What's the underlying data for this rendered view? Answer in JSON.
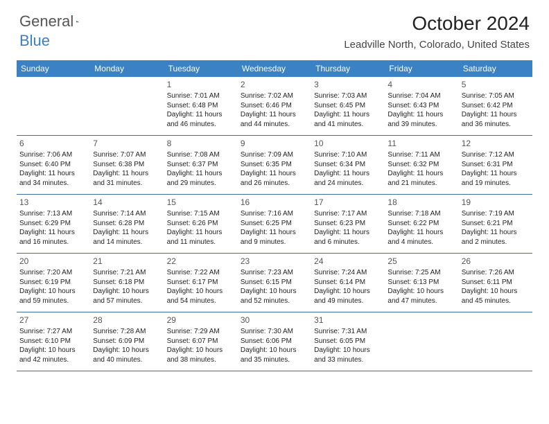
{
  "logo": {
    "text1": "General",
    "text2": "Blue",
    "color": "#3b7fc4"
  },
  "title": "October 2024",
  "location": "Leadville North, Colorado, United States",
  "colors": {
    "header_bg": "#3b82c4",
    "header_text": "#ffffff",
    "rule": "#3b6ea0",
    "text": "#222222",
    "daynum": "#555555"
  },
  "day_headers": [
    "Sunday",
    "Monday",
    "Tuesday",
    "Wednesday",
    "Thursday",
    "Friday",
    "Saturday"
  ],
  "weeks": [
    [
      {
        "blank": true
      },
      {
        "blank": true
      },
      {
        "n": "1",
        "sr": "7:01 AM",
        "ss": "6:48 PM",
        "dl": "11 hours and 46 minutes."
      },
      {
        "n": "2",
        "sr": "7:02 AM",
        "ss": "6:46 PM",
        "dl": "11 hours and 44 minutes."
      },
      {
        "n": "3",
        "sr": "7:03 AM",
        "ss": "6:45 PM",
        "dl": "11 hours and 41 minutes."
      },
      {
        "n": "4",
        "sr": "7:04 AM",
        "ss": "6:43 PM",
        "dl": "11 hours and 39 minutes."
      },
      {
        "n": "5",
        "sr": "7:05 AM",
        "ss": "6:42 PM",
        "dl": "11 hours and 36 minutes."
      }
    ],
    [
      {
        "n": "6",
        "sr": "7:06 AM",
        "ss": "6:40 PM",
        "dl": "11 hours and 34 minutes."
      },
      {
        "n": "7",
        "sr": "7:07 AM",
        "ss": "6:38 PM",
        "dl": "11 hours and 31 minutes."
      },
      {
        "n": "8",
        "sr": "7:08 AM",
        "ss": "6:37 PM",
        "dl": "11 hours and 29 minutes."
      },
      {
        "n": "9",
        "sr": "7:09 AM",
        "ss": "6:35 PM",
        "dl": "11 hours and 26 minutes."
      },
      {
        "n": "10",
        "sr": "7:10 AM",
        "ss": "6:34 PM",
        "dl": "11 hours and 24 minutes."
      },
      {
        "n": "11",
        "sr": "7:11 AM",
        "ss": "6:32 PM",
        "dl": "11 hours and 21 minutes."
      },
      {
        "n": "12",
        "sr": "7:12 AM",
        "ss": "6:31 PM",
        "dl": "11 hours and 19 minutes."
      }
    ],
    [
      {
        "n": "13",
        "sr": "7:13 AM",
        "ss": "6:29 PM",
        "dl": "11 hours and 16 minutes."
      },
      {
        "n": "14",
        "sr": "7:14 AM",
        "ss": "6:28 PM",
        "dl": "11 hours and 14 minutes."
      },
      {
        "n": "15",
        "sr": "7:15 AM",
        "ss": "6:26 PM",
        "dl": "11 hours and 11 minutes."
      },
      {
        "n": "16",
        "sr": "7:16 AM",
        "ss": "6:25 PM",
        "dl": "11 hours and 9 minutes."
      },
      {
        "n": "17",
        "sr": "7:17 AM",
        "ss": "6:23 PM",
        "dl": "11 hours and 6 minutes."
      },
      {
        "n": "18",
        "sr": "7:18 AM",
        "ss": "6:22 PM",
        "dl": "11 hours and 4 minutes."
      },
      {
        "n": "19",
        "sr": "7:19 AM",
        "ss": "6:21 PM",
        "dl": "11 hours and 2 minutes."
      }
    ],
    [
      {
        "n": "20",
        "sr": "7:20 AM",
        "ss": "6:19 PM",
        "dl": "10 hours and 59 minutes."
      },
      {
        "n": "21",
        "sr": "7:21 AM",
        "ss": "6:18 PM",
        "dl": "10 hours and 57 minutes."
      },
      {
        "n": "22",
        "sr": "7:22 AM",
        "ss": "6:17 PM",
        "dl": "10 hours and 54 minutes."
      },
      {
        "n": "23",
        "sr": "7:23 AM",
        "ss": "6:15 PM",
        "dl": "10 hours and 52 minutes."
      },
      {
        "n": "24",
        "sr": "7:24 AM",
        "ss": "6:14 PM",
        "dl": "10 hours and 49 minutes."
      },
      {
        "n": "25",
        "sr": "7:25 AM",
        "ss": "6:13 PM",
        "dl": "10 hours and 47 minutes."
      },
      {
        "n": "26",
        "sr": "7:26 AM",
        "ss": "6:11 PM",
        "dl": "10 hours and 45 minutes."
      }
    ],
    [
      {
        "n": "27",
        "sr": "7:27 AM",
        "ss": "6:10 PM",
        "dl": "10 hours and 42 minutes."
      },
      {
        "n": "28",
        "sr": "7:28 AM",
        "ss": "6:09 PM",
        "dl": "10 hours and 40 minutes."
      },
      {
        "n": "29",
        "sr": "7:29 AM",
        "ss": "6:07 PM",
        "dl": "10 hours and 38 minutes."
      },
      {
        "n": "30",
        "sr": "7:30 AM",
        "ss": "6:06 PM",
        "dl": "10 hours and 35 minutes."
      },
      {
        "n": "31",
        "sr": "7:31 AM",
        "ss": "6:05 PM",
        "dl": "10 hours and 33 minutes."
      },
      {
        "blank": true
      },
      {
        "blank": true
      }
    ]
  ],
  "labels": {
    "sunrise": "Sunrise: ",
    "sunset": "Sunset: ",
    "daylight": "Daylight: "
  }
}
